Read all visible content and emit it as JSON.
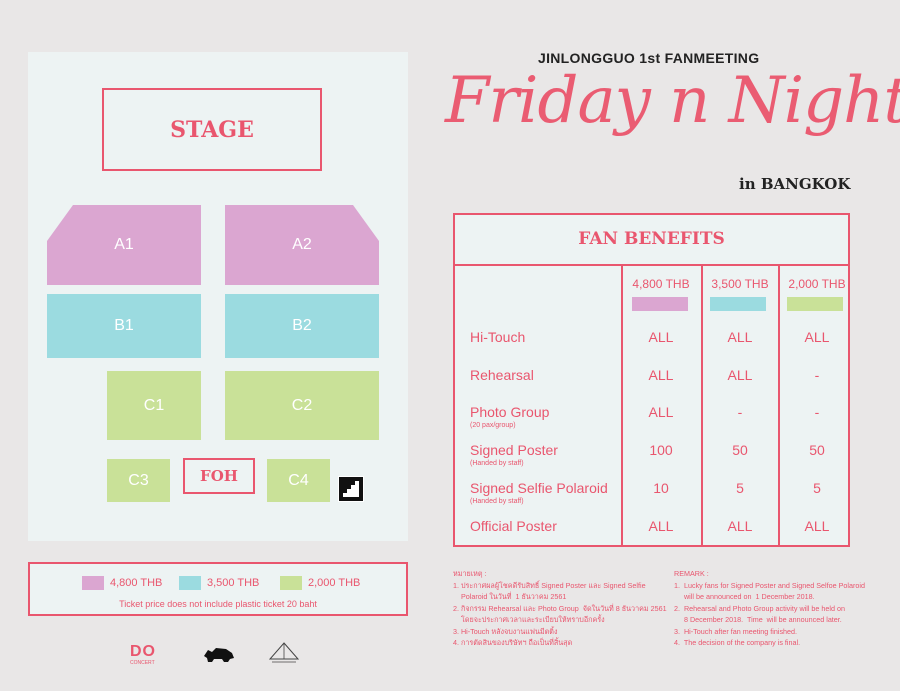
{
  "seating": {
    "stage": "STAGE",
    "zones": {
      "a1": "A1",
      "a2": "A2",
      "b1": "B1",
      "b2": "B2",
      "c1": "C1",
      "c2": "C2",
      "c3": "C3",
      "c4": "C4"
    },
    "foh": "FOH"
  },
  "legend": {
    "items": [
      {
        "label": "4,800 THB",
        "color": "#dba6d1"
      },
      {
        "label": "3,500 THB",
        "color": "#9bdbe0"
      },
      {
        "label": "2,000 THB",
        "color": "#c9e198"
      }
    ],
    "note": "Ticket price does not include plastic ticket 20 baht"
  },
  "header": {
    "subtitle": "JINLONGGUO 1st FANMEETING",
    "title": "Friday n Night",
    "location": "in BANGKOK"
  },
  "benefits": {
    "title": "FAN BENEFITS",
    "tiers": [
      "4,800 THB",
      "3,500 THB",
      "2,000 THB"
    ],
    "rows": [
      {
        "label": "Hi-Touch",
        "sub": "",
        "values": [
          "ALL",
          "ALL",
          "ALL"
        ]
      },
      {
        "label": "Rehearsal",
        "sub": "",
        "values": [
          "ALL",
          "ALL",
          "-"
        ]
      },
      {
        "label": "Photo Group",
        "sub": "(20 pax/group)",
        "values": [
          "ALL",
          "-",
          "-"
        ]
      },
      {
        "label": "Signed Poster",
        "sub": "(Handed by staff)",
        "values": [
          "100",
          "50",
          "50"
        ]
      },
      {
        "label": "Signed Selfie Polaroid",
        "sub": "(Handed by staff)",
        "values": [
          "10",
          "5",
          "5"
        ]
      },
      {
        "label": "Official Poster",
        "sub": "",
        "values": [
          "ALL",
          "ALL",
          "ALL"
        ]
      }
    ]
  },
  "notes_th": {
    "heading": "หมายเหตุ :",
    "lines": [
      "1. ประกาศผลผู้โชคดีรับสิทธิ์ Signed Poster และ Signed Selfie",
      "    Polaroid ในวันที่  1 ธันวาคม 2561",
      "2. กิจกรรม Rehearsal และ Photo Group  จัดในวันที่ 8 ธันวาคม 2561",
      "    โดยจะประกาศเวลาและระเบียบให้ทราบอีกครั้ง",
      "3. Hi-Touch หลังจบงานแฟนมีตติ้ง",
      "4. การตัดสินของบริษัทฯ ถือเป็นที่สิ้นสุด"
    ]
  },
  "notes_en": {
    "heading": "REMARK :",
    "lines": [
      "1.  Lucky fans for Signed Poster and Signed Selfoe Polaroid",
      "     will be announced on  1 December 2018.",
      "2.  Rehearsal and Photo Group activity will be held on",
      "     8 December 2018.  Time  will be announced later.",
      "3.  Hi-Touch after fan meeting finished.",
      "4.  The decision of the company is final."
    ]
  },
  "logos": {
    "concert_name": "DO",
    "concert_sub": "CONCERT"
  }
}
